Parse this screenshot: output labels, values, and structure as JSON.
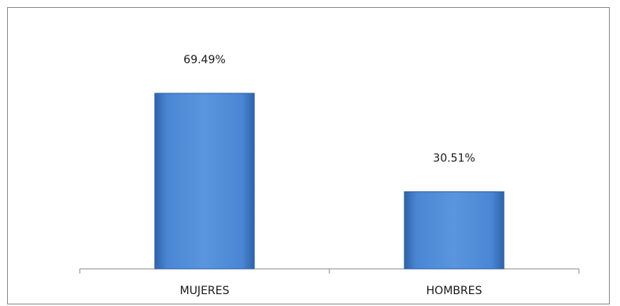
{
  "chart_data": {
    "type": "bar",
    "categories": [
      "MUJERES",
      "HOMBRES"
    ],
    "values": [
      69.49,
      30.51
    ],
    "data_labels": [
      "69.49%",
      "30.51%"
    ],
    "title": "",
    "xlabel": "",
    "ylabel": "",
    "ylim": [
      0,
      100
    ],
    "grid": false,
    "legend": "none",
    "bar_color": "#4a86d4",
    "bar_edge_color": "#2e5f9e"
  }
}
